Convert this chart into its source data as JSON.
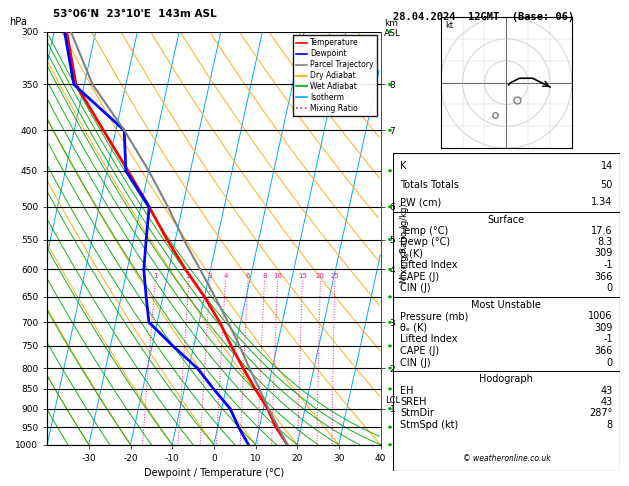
{
  "title_left": "53°06'N  23°10'E  143m ASL",
  "title_right": "28.04.2024  12GMT  (Base: 06)",
  "xlabel": "Dewpoint / Temperature (°C)",
  "ylabel_left": "hPa",
  "ylabel_right_km": "km",
  "ylabel_right_asl": "ASL",
  "ylabel_right_mix": "Mixing Ratio (g/kg)",
  "pressure_ticks": [
    300,
    350,
    400,
    450,
    500,
    550,
    600,
    650,
    700,
    750,
    800,
    850,
    900,
    950,
    1000
  ],
  "temp_xlim": [
    -40,
    40
  ],
  "temp_xticks": [
    -30,
    -20,
    -10,
    0,
    10,
    20,
    30,
    40
  ],
  "temp_profile": {
    "pressure": [
      1000,
      950,
      900,
      850,
      800,
      750,
      700,
      650,
      600,
      550,
      500,
      450,
      400,
      350,
      300
    ],
    "temp": [
      17.6,
      14.0,
      11.0,
      7.0,
      3.0,
      -1.0,
      -5.0,
      -10.0,
      -16.0,
      -22.0,
      -28.0,
      -35.0,
      -43.0,
      -52.0,
      -57.0
    ]
  },
  "dewpoint_profile": {
    "pressure": [
      1000,
      950,
      900,
      850,
      800,
      750,
      700,
      650,
      600,
      550,
      500,
      450,
      400,
      350,
      300
    ],
    "temp": [
      8.3,
      5.0,
      2.0,
      -3.0,
      -8.0,
      -15.0,
      -22.0,
      -24.0,
      -26.0,
      -27.0,
      -28.0,
      -35.5,
      -38.0,
      -52.5,
      -57.5
    ]
  },
  "parcel_profile": {
    "pressure": [
      1000,
      950,
      900,
      850,
      800,
      750,
      700,
      650,
      600,
      550,
      500,
      450,
      400,
      350,
      300
    ],
    "temp": [
      17.6,
      14.5,
      11.2,
      8.0,
      4.5,
      1.0,
      -3.0,
      -7.5,
      -12.5,
      -18.0,
      -23.5,
      -30.0,
      -38.0,
      -48.0,
      -56.0
    ]
  },
  "colors": {
    "temperature": "#FF0000",
    "dewpoint": "#0000FF",
    "parcel": "#808080",
    "dry_adiabat": "#FFA500",
    "wet_adiabat": "#00AA00",
    "isotherm": "#00AAFF",
    "mixing_ratio": "#FF1493",
    "background": "#FFFFFF",
    "grid": "#000000"
  },
  "stats": {
    "K": 14,
    "Totals_Totals": 50,
    "PW_cm": 1.34,
    "Surface_Temp": 17.6,
    "Surface_Dewp": 8.3,
    "Surface_theta_e": 309,
    "Surface_Lifted_Index": -1,
    "Surface_CAPE": 366,
    "Surface_CIN": 0,
    "MU_Pressure": 1006,
    "MU_theta_e": 309,
    "MU_Lifted_Index": -1,
    "MU_CAPE": 366,
    "MU_CIN": 0,
    "Hodo_EH": 43,
    "Hodo_SREH": 43,
    "Hodo_StmDir": "287°",
    "Hodo_StmSpd": 8
  },
  "mixing_ratio_lines": [
    1,
    2,
    3,
    4,
    6,
    8,
    10,
    15,
    20,
    25
  ],
  "km_labels": {
    "1": 900,
    "2": 800,
    "3": 700,
    "4": 600,
    "5": 550,
    "6": 500,
    "7": 400,
    "8": 350
  },
  "lcl_pressure": 878,
  "skew_factor": 18.0,
  "legend_entries": [
    [
      "Temperature",
      "#FF0000",
      "solid"
    ],
    [
      "Dewpoint",
      "#0000FF",
      "solid"
    ],
    [
      "Parcel Trajectory",
      "#808080",
      "solid"
    ],
    [
      "Dry Adiabat",
      "#FFA500",
      "solid"
    ],
    [
      "Wet Adiabat",
      "#00AA00",
      "solid"
    ],
    [
      "Isotherm",
      "#00AAFF",
      "solid"
    ],
    [
      "Mixing Ratio",
      "#FF1493",
      "dotted"
    ]
  ]
}
